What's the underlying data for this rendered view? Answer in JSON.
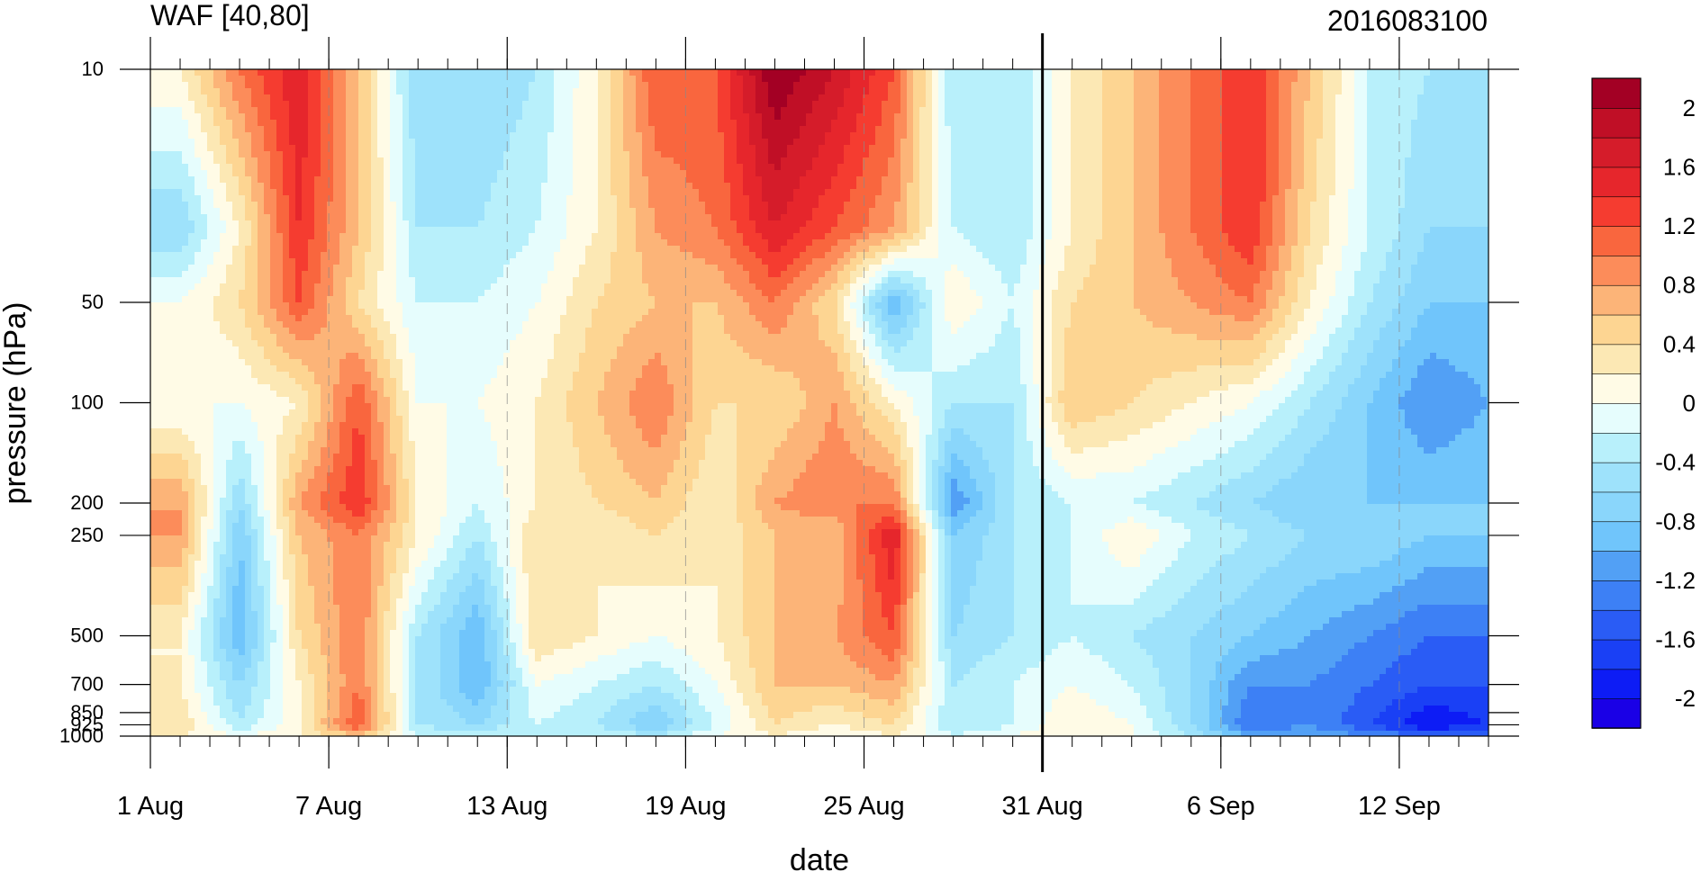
{
  "chart_data": {
    "type": "heatmap",
    "title_left": "WAF [40,80]",
    "title_right": "2016083100",
    "xlabel": "date",
    "ylabel": "pressure (hPa)",
    "y_scale": "log",
    "y_ticks": [
      {
        "value": 10,
        "label": "10"
      },
      {
        "value": 50,
        "label": "50"
      },
      {
        "value": 100,
        "label": "100"
      },
      {
        "value": 200,
        "label": "200"
      },
      {
        "value": 250,
        "label": "250"
      },
      {
        "value": 500,
        "label": "500"
      },
      {
        "value": 700,
        "label": "700"
      },
      {
        "value": 850,
        "label": "850"
      },
      {
        "value": 925,
        "label": "925"
      },
      {
        "value": 1000,
        "label": "1000"
      }
    ],
    "x_ticks": [
      {
        "date": "2016-08-01",
        "label": "1 Aug"
      },
      {
        "date": "2016-08-07",
        "label": "7 Aug"
      },
      {
        "date": "2016-08-13",
        "label": "13 Aug"
      },
      {
        "date": "2016-08-19",
        "label": "19 Aug"
      },
      {
        "date": "2016-08-25",
        "label": "25 Aug"
      },
      {
        "date": "2016-08-31",
        "label": "31 Aug"
      },
      {
        "date": "2016-09-06",
        "label": "6 Sep"
      },
      {
        "date": "2016-09-12",
        "label": "12 Sep"
      }
    ],
    "x_range": [
      "2016-08-01",
      "2016-09-15"
    ],
    "y_range": [
      1000,
      10
    ],
    "marker_date": "2016-08-31",
    "colorbar": {
      "levels": [
        -2.2,
        -2,
        -1.8,
        -1.6,
        -1.4,
        -1.2,
        -1,
        -0.8,
        -0.6,
        -0.4,
        -0.2,
        0,
        0.2,
        0.4,
        0.6,
        0.8,
        1,
        1.2,
        1.4,
        1.6,
        1.8,
        2,
        2.2
      ],
      "colors": [
        "#1a00e6",
        "#0d1cf5",
        "#1a40f5",
        "#2a5cf5",
        "#3d80f5",
        "#52a0f5",
        "#70c5fb",
        "#8ad6fb",
        "#9ee2fb",
        "#b8f0fb",
        "#e6fdfd",
        "#fffbe6",
        "#fce8b4",
        "#fdd592",
        "#fcb478",
        "#fc8c5a",
        "#f9663e",
        "#f53c30",
        "#e6262c",
        "#d51c2a",
        "#c00f26",
        "#a30024"
      ],
      "tick_labels": [
        "-2",
        "-1.6",
        "-1.2",
        "-0.8",
        "-0.4",
        "0",
        "0.4",
        "0.8",
        "1.2",
        "1.6",
        "2"
      ]
    },
    "grid": "dashed vertical lines at date ticks",
    "field_sample": {
      "dates": [
        "2016-08-02",
        "2016-08-04",
        "2016-08-06",
        "2016-08-08",
        "2016-08-10",
        "2016-08-12",
        "2016-08-14",
        "2016-08-16",
        "2016-08-18",
        "2016-08-20",
        "2016-08-22",
        "2016-08-24",
        "2016-08-26",
        "2016-08-28",
        "2016-08-30",
        "2016-09-01",
        "2016-09-03",
        "2016-09-05",
        "2016-09-07",
        "2016-09-09",
        "2016-09-11",
        "2016-09-13",
        "2016-09-15"
      ],
      "levels_hPa": [
        10,
        30,
        50,
        100,
        200,
        250,
        500,
        700,
        925,
        1000
      ],
      "values": [
        [
          0.2,
          1.0,
          1.6,
          0.6,
          -0.6,
          -0.6,
          -0.4,
          0.2,
          1.2,
          1.2,
          2.2,
          1.8,
          1.2,
          -0.4,
          -0.4,
          0.2,
          0.6,
          1.0,
          1.4,
          0.6,
          -0.2,
          -0.4,
          -0.4
        ],
        [
          -0.6,
          0.2,
          1.4,
          0.6,
          -0.4,
          -0.4,
          -0.2,
          0.2,
          0.8,
          1.0,
          1.6,
          1.2,
          0.8,
          -0.2,
          -0.4,
          0.2,
          0.6,
          1.0,
          1.4,
          0.4,
          -0.2,
          -0.6,
          -0.6
        ],
        [
          0.0,
          0.4,
          1.2,
          0.4,
          -0.2,
          -0.2,
          0.0,
          0.4,
          0.6,
          0.6,
          1.0,
          0.4,
          -1.0,
          0.2,
          -0.2,
          0.4,
          0.6,
          0.8,
          1.0,
          0.2,
          -0.4,
          -0.8,
          -0.8
        ],
        [
          0.0,
          0.0,
          0.2,
          1.2,
          0.0,
          0.0,
          0.2,
          0.6,
          1.0,
          0.4,
          0.4,
          0.8,
          0.2,
          -0.4,
          -0.4,
          0.6,
          0.4,
          0.2,
          0.0,
          -0.4,
          -0.8,
          -1.2,
          -1.0
        ],
        [
          0.8,
          -0.6,
          0.8,
          1.4,
          0.2,
          -0.2,
          0.2,
          0.4,
          0.6,
          0.2,
          0.8,
          1.0,
          1.0,
          -1.2,
          -0.4,
          -0.2,
          -0.2,
          -0.4,
          -0.6,
          -0.8,
          -0.8,
          -0.8,
          -0.8
        ],
        [
          0.8,
          -0.8,
          0.6,
          1.0,
          0.2,
          -0.4,
          0.4,
          0.2,
          0.4,
          0.2,
          0.6,
          0.6,
          1.6,
          -0.8,
          -0.4,
          -0.2,
          0.2,
          -0.2,
          -0.4,
          -0.6,
          -0.6,
          -0.8,
          -0.8
        ],
        [
          0.2,
          -1.0,
          0.4,
          1.0,
          -0.4,
          -1.0,
          0.4,
          0.2,
          0.0,
          0.2,
          0.6,
          0.8,
          1.2,
          -0.6,
          -0.4,
          -0.2,
          -0.4,
          -0.6,
          -0.8,
          -1.0,
          -1.2,
          -1.4,
          -1.4
        ],
        [
          0.2,
          -0.6,
          0.2,
          1.0,
          -0.4,
          -1.0,
          0.0,
          -0.2,
          -0.4,
          0.0,
          0.6,
          0.6,
          0.8,
          -0.4,
          -0.2,
          0.0,
          -0.2,
          -0.6,
          -1.2,
          -1.2,
          -1.4,
          -1.6,
          -1.6
        ],
        [
          0.4,
          -0.4,
          0.2,
          1.2,
          -0.4,
          -0.6,
          -0.2,
          -0.4,
          -0.8,
          -0.2,
          0.4,
          0.2,
          0.4,
          -0.4,
          -0.2,
          0.2,
          0.0,
          -0.6,
          -1.4,
          -1.2,
          -1.6,
          -2.0,
          -1.8
        ],
        [
          0.2,
          0.0,
          0.2,
          0.6,
          -0.2,
          -0.2,
          -0.2,
          -0.2,
          -0.4,
          0.0,
          0.2,
          0.0,
          0.2,
          -0.2,
          0.0,
          0.2,
          0.0,
          -0.4,
          -1.0,
          -1.0,
          -1.2,
          -1.4,
          -1.4
        ]
      ]
    }
  }
}
